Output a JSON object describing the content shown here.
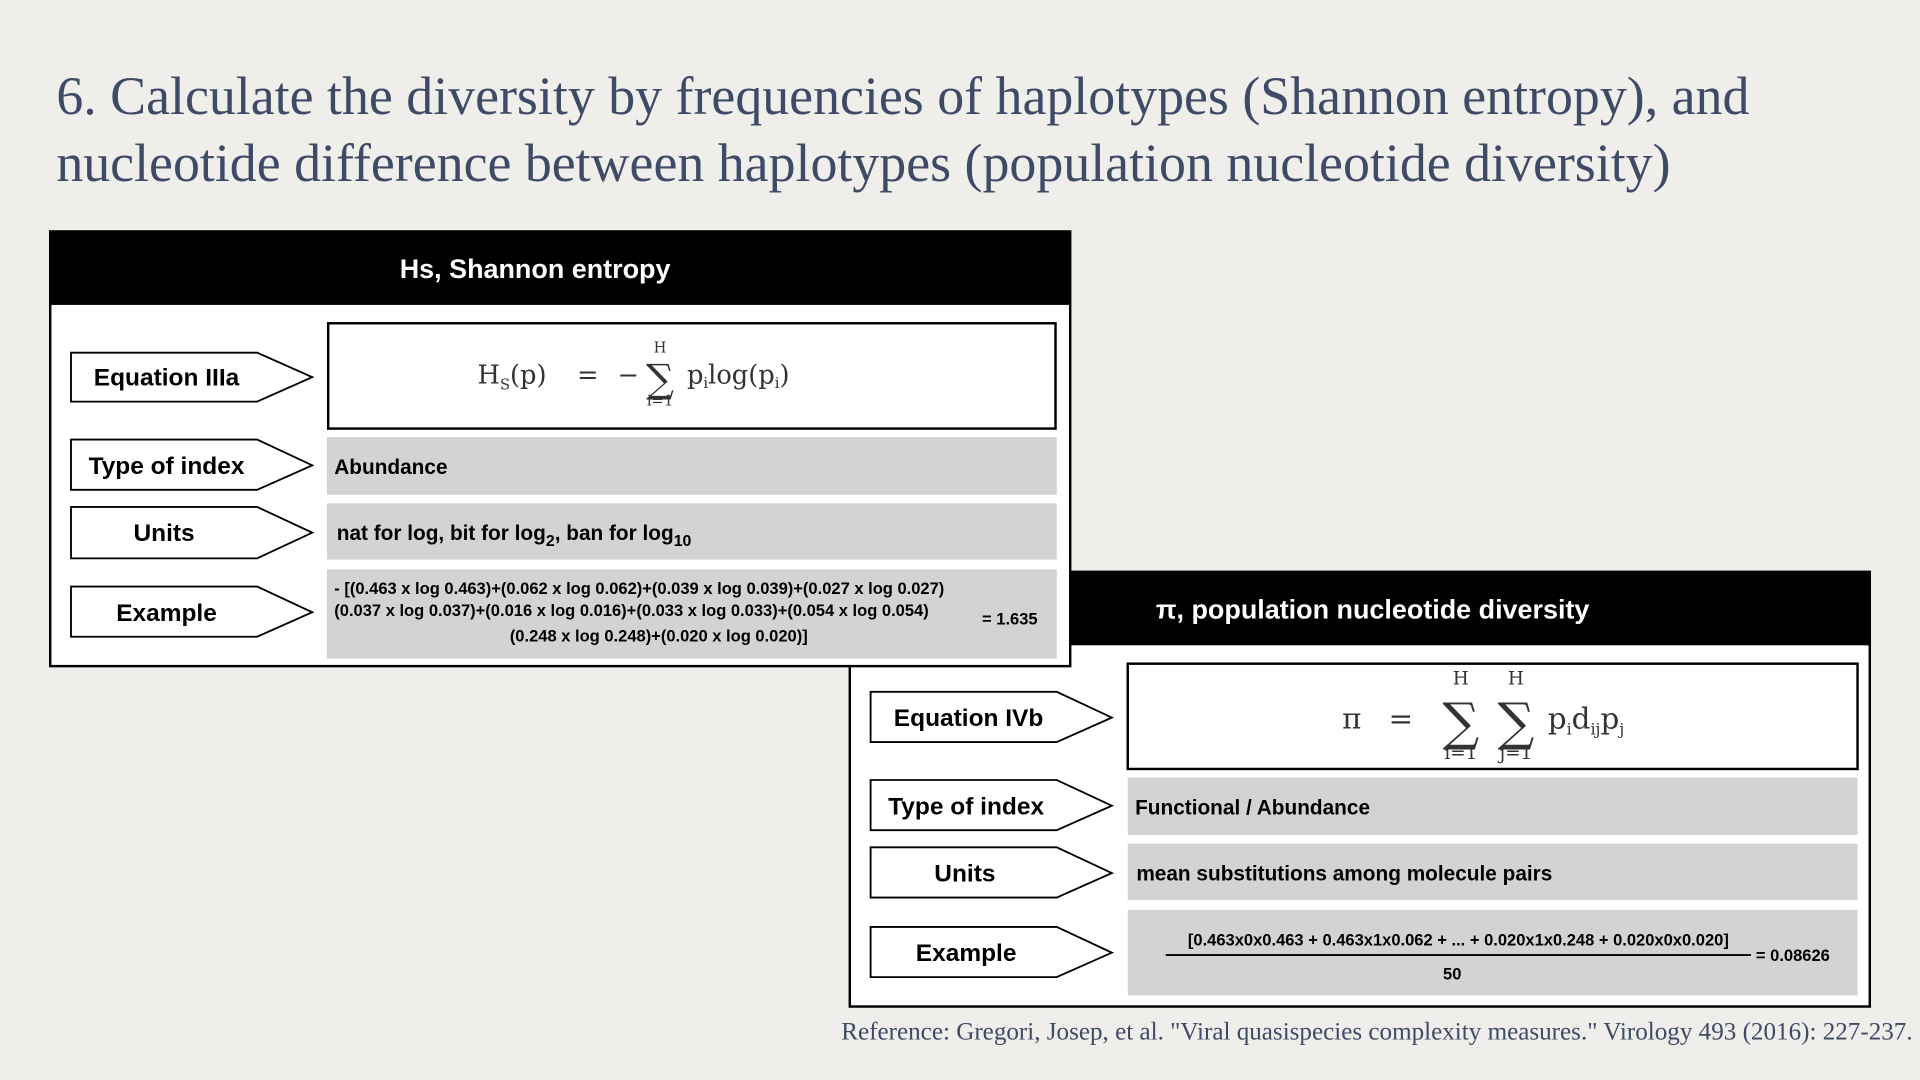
{
  "title": {
    "line1": "6. Calculate the diversity by frequencies of haplotypes (Shannon entropy), and",
    "line2": "nucleotide difference between haplotypes (population nucleotide diversity)"
  },
  "shannon": {
    "header": "Hs, Shannon entropy",
    "equation_label": "Equation IIIa",
    "equation": {
      "lhs": "H",
      "lhs_sub": "S",
      "lhs_arg": "(p)",
      "eq": "=",
      "minus": "−",
      "sum": "∑",
      "upper": "H",
      "lower": "i=1",
      "term": "p",
      "term_sub": "i",
      "log": "log(p",
      "log_sub": "i",
      "close": ")"
    },
    "type_label": "Type of index",
    "type": "Abundance",
    "units_label": "Units",
    "units": {
      "part1": "nat for log, bit for log",
      "sub1": "2",
      "part2": ", ban for log",
      "sub2": "10"
    },
    "example_label": "Example",
    "example": {
      "lines": [
        "- [(0.463 x log 0.463)+(0.062 x log 0.062)+(0.039 x log 0.039)+(0.027 x log 0.027)",
        "(0.037 x log 0.037)+(0.016 x log 0.016)+(0.033 x log 0.033)+(0.054 x log 0.054)",
        "(0.248 x log 0.248)+(0.020 x log 0.020)]"
      ],
      "result": "= 1.635"
    }
  },
  "nucleotide": {
    "header": "π, population nucleotide diversity",
    "equation_label": "Equation IVb",
    "equation": {
      "lhs": "π",
      "eq": "=",
      "sum1": "∑",
      "upper1": "H",
      "lower1": "i=1",
      "sum2": "∑",
      "upper2": "H",
      "lower2": "j=1",
      "p1": "p",
      "p1_sub": "i",
      "d": "d",
      "d_sub": "ij",
      "p2": "p",
      "p2_sub": "j"
    },
    "type_label": "Type of index",
    "type": "Functional / Abundance",
    "units_label": "Units",
    "units": "mean substitutions among molecule pairs",
    "example_label": "Example",
    "example": {
      "numerator": "[0.463x0x0.463 + 0.463x1x0.062 + ... + 0.020x1x0.248 + 0.020x0x0.020]",
      "denominator": "50",
      "result": "= 0.08626"
    }
  },
  "reference": "Reference: Gregori, Josep, et al. \"Viral quasispecies complexity measures.\" Virology 493 (2016): 227-237."
}
